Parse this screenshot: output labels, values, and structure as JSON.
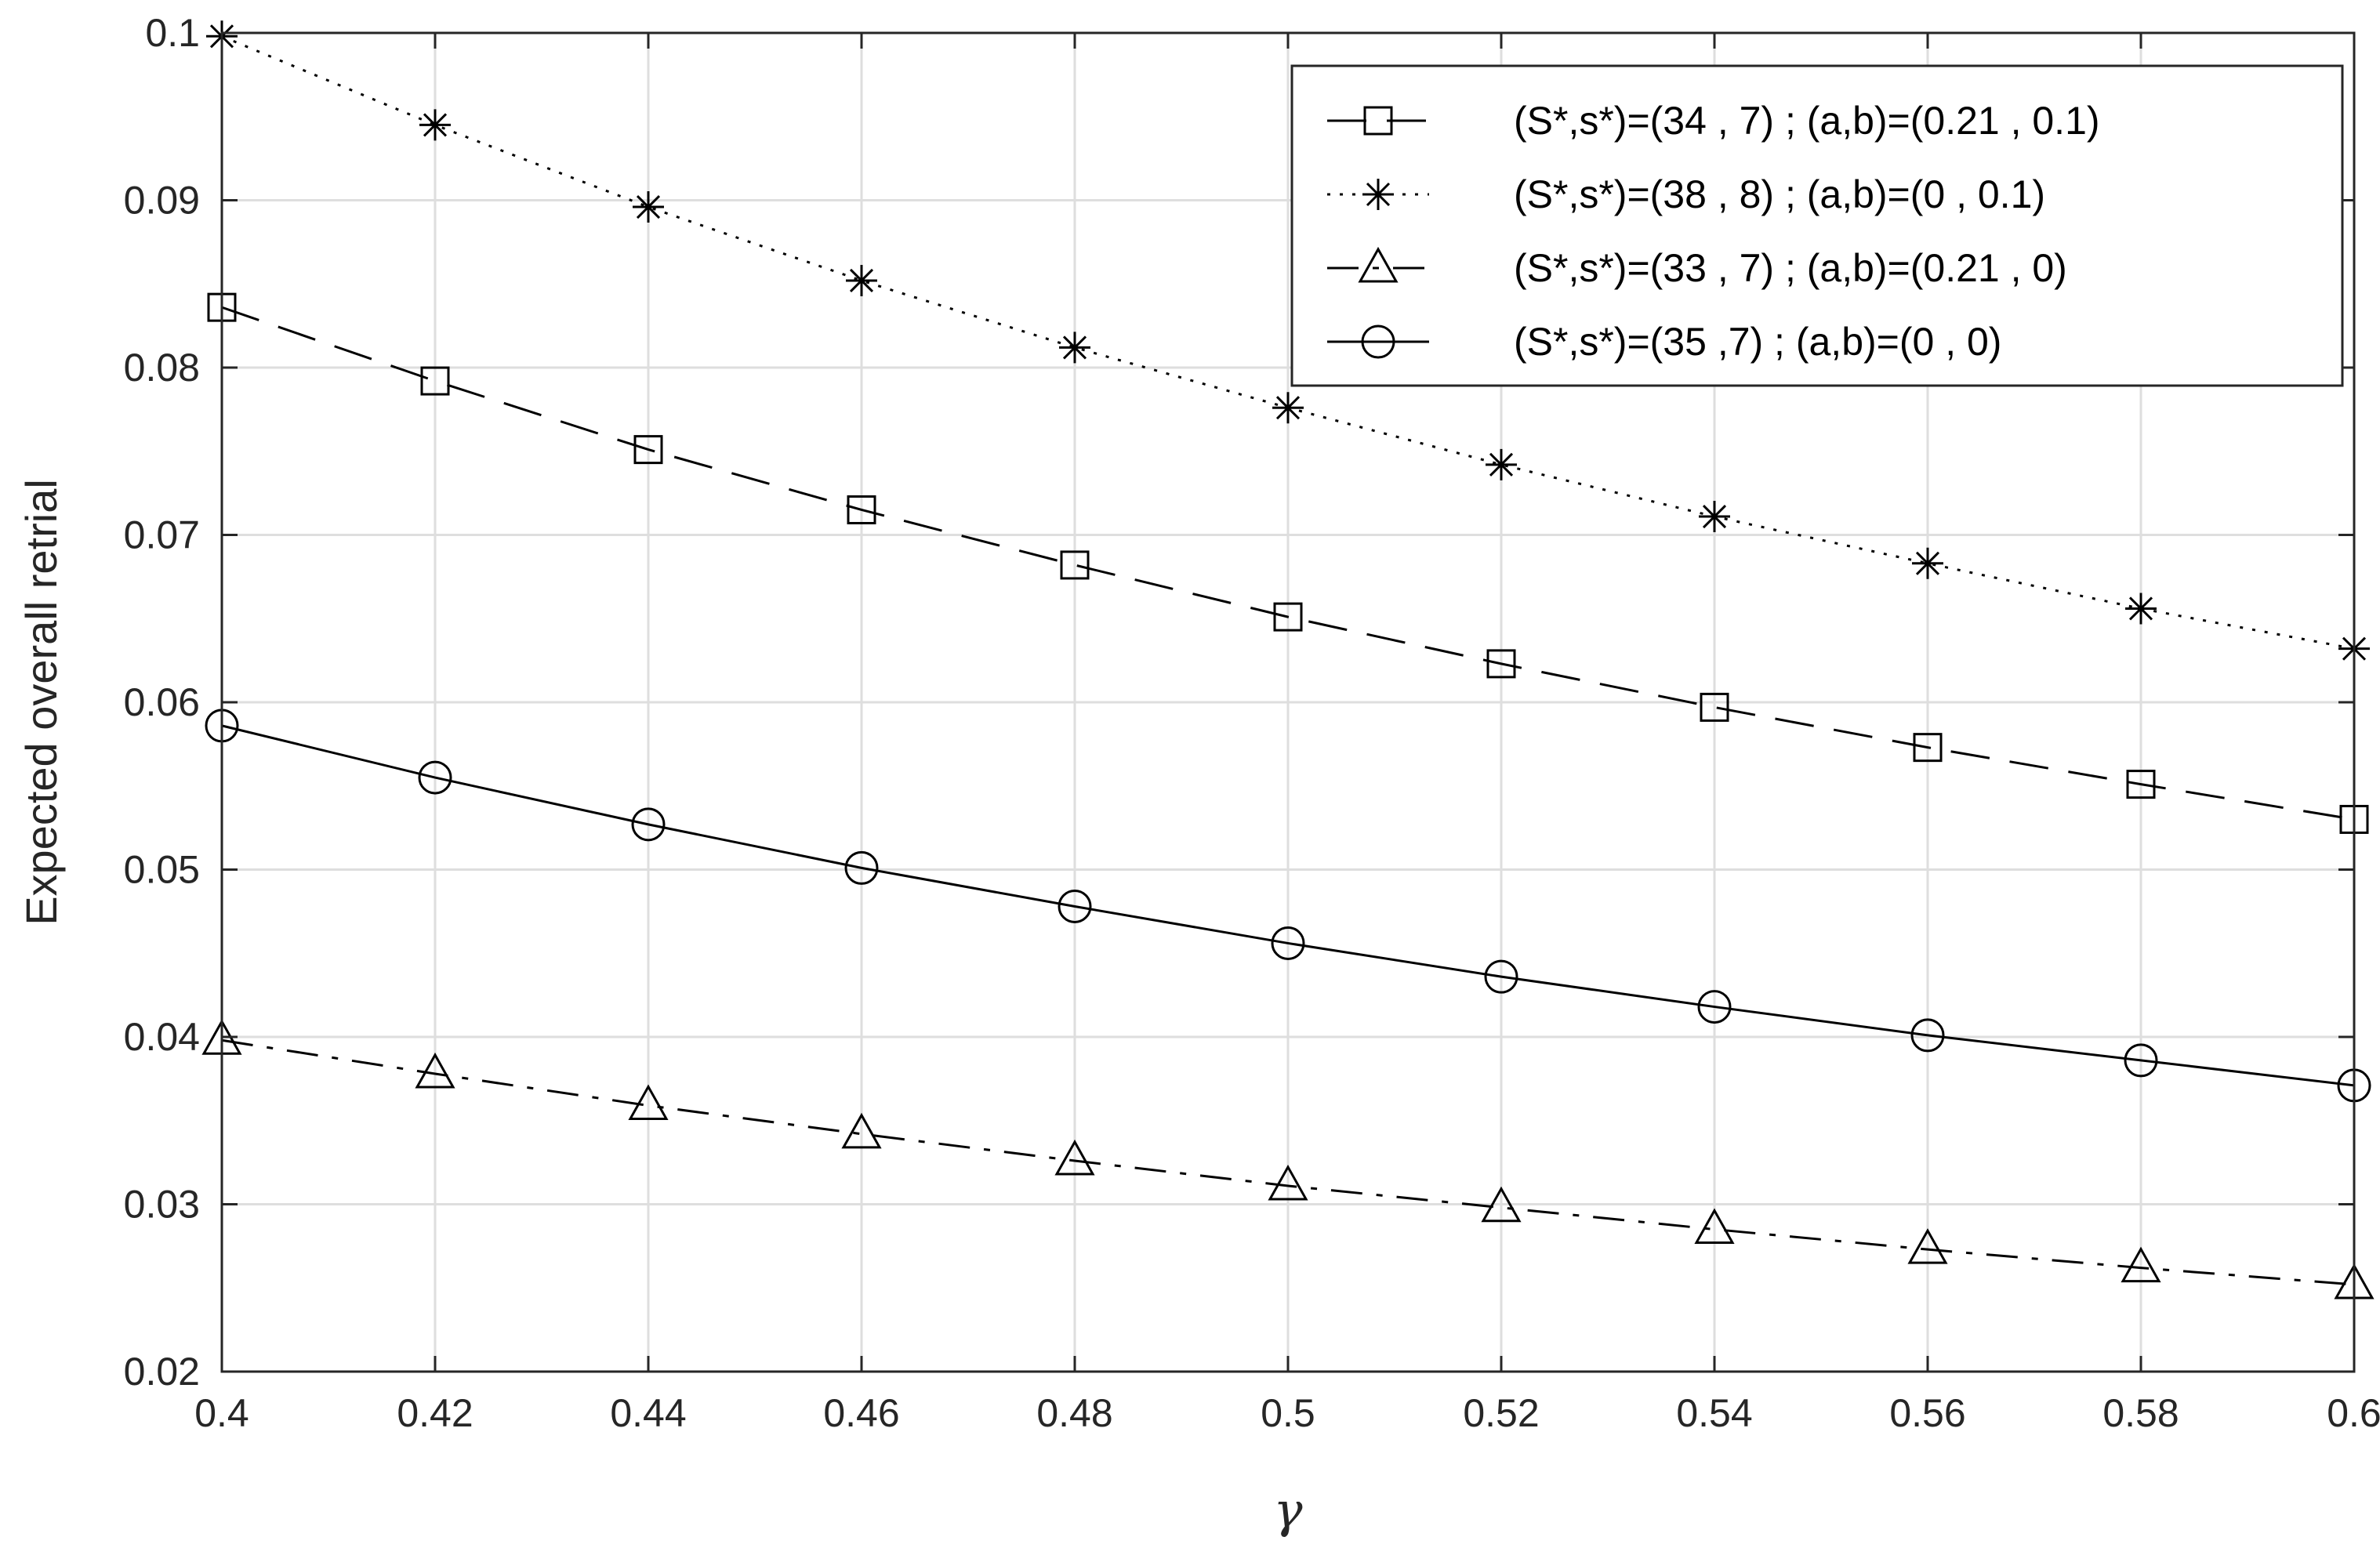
{
  "chart_data": {
    "type": "line",
    "title": "",
    "xlabel": "γ",
    "ylabel": "Expected overall retrial",
    "xlim": [
      0.4,
      0.6
    ],
    "ylim": [
      0.02,
      0.1
    ],
    "grid": true,
    "legend_position": "top-right",
    "x": [
      0.4,
      0.42,
      0.44,
      0.46,
      0.48,
      0.5,
      0.52,
      0.54,
      0.56,
      0.58,
      0.6
    ],
    "x_ticks": [
      "0.4",
      "0.42",
      "0.44",
      "0.46",
      "0.48",
      "0.5",
      "0.52",
      "0.54",
      "0.56",
      "0.58",
      "0.6"
    ],
    "y_ticks": [
      "0.02",
      "0.03",
      "0.04",
      "0.05",
      "0.06",
      "0.07",
      "0.08",
      "0.09",
      "0.1"
    ],
    "series": [
      {
        "name": "(S*,s*)=(34 , 7) ; (a,b)=(0.21 , 0.1)",
        "marker": "square",
        "line_style": "dashed",
        "values": [
          0.0836,
          0.0792,
          0.0751,
          0.0715,
          0.0682,
          0.0651,
          0.0623,
          0.0597,
          0.0573,
          0.0551,
          0.053
        ]
      },
      {
        "name": "(S*,s*)=(38 , 8) ; (a,b)=(0 , 0.1)",
        "marker": "asterisk",
        "line_style": "dotted",
        "values": [
          0.0998,
          0.0945,
          0.0896,
          0.0852,
          0.0812,
          0.0776,
          0.0742,
          0.0711,
          0.0683,
          0.0656,
          0.0632
        ]
      },
      {
        "name": "(S*,s*)=(33 , 7) ; (a,b)=(0.21 , 0)",
        "marker": "triangle",
        "line_style": "dashdot",
        "values": [
          0.0398,
          0.0378,
          0.0359,
          0.0342,
          0.0326,
          0.0311,
          0.0298,
          0.0285,
          0.0273,
          0.0262,
          0.0252
        ]
      },
      {
        "name": "(S*,s*)=(35 ,7) ; (a,b)=(0 , 0)",
        "marker": "circle",
        "line_style": "solid",
        "values": [
          0.0586,
          0.0555,
          0.0527,
          0.0501,
          0.0478,
          0.0456,
          0.0436,
          0.0418,
          0.0401,
          0.0386,
          0.0371
        ]
      }
    ]
  },
  "colors": {
    "line": "#000000",
    "grid": "#dedede",
    "axis": "#262626",
    "background": "#ffffff"
  }
}
